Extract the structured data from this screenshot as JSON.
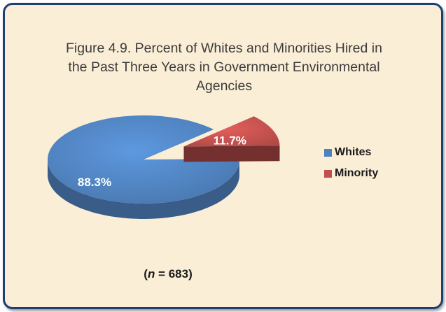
{
  "chart_data": {
    "type": "pie",
    "title_lines": [
      "Figure 4.9.  Percent of Whites and Minorities Hired in",
      "the Past Three Years in Government Environmental",
      "Agencies"
    ],
    "categories": [
      "Whites",
      "Minority"
    ],
    "values": [
      88.3,
      11.7
    ],
    "labels": [
      "88.3%",
      "11.7%"
    ],
    "colors": [
      "#4f81bd",
      "#c0504d"
    ],
    "exploded": [
      false,
      true
    ],
    "legend_position": "right",
    "note_prefix": "(",
    "note_var": "n",
    "note_value": " = 683)"
  }
}
